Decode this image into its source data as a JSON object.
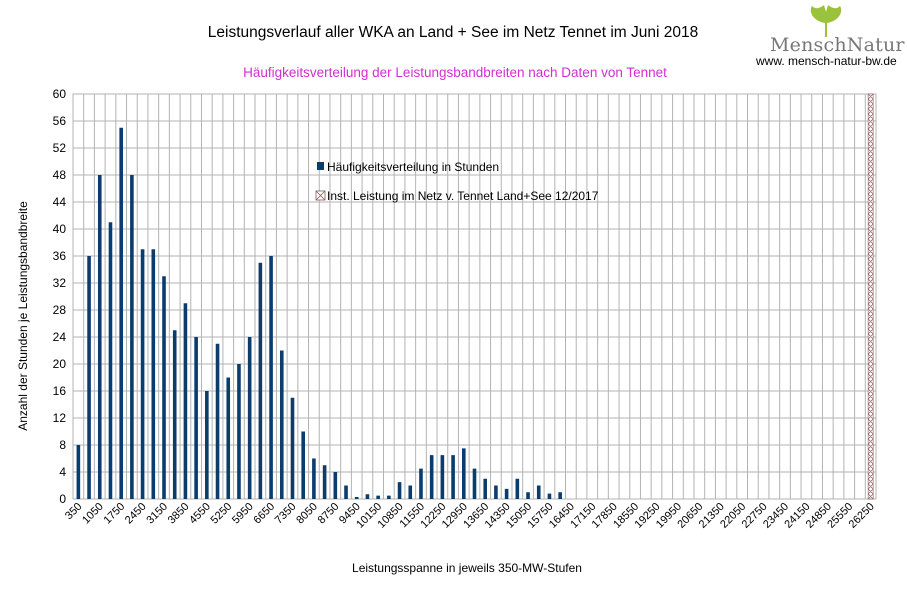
{
  "chart_data": {
    "type": "bar",
    "title": "Leistungsverlauf aller WKA an Land + See im Netz Tennet im Juni 2018",
    "subtitle": "Häufigkeitsverteilung der Leistungsbandbreiten nach Daten von Tennet",
    "xlabel": "Leistungsspanne in jeweils 350-MW-Stufen",
    "ylabel": "Anzahl der Stunden je Leistungsbandbreite",
    "ylim": [
      0,
      60
    ],
    "yticks": [
      0,
      4,
      8,
      12,
      16,
      20,
      24,
      28,
      32,
      36,
      40,
      44,
      48,
      52,
      56,
      60
    ],
    "x_start": 350,
    "x_step": 350,
    "x_count": 75,
    "xtick_labels": [
      "350",
      "1050",
      "1750",
      "2450",
      "3150",
      "3850",
      "4550",
      "5250",
      "5950",
      "6650",
      "7350",
      "8050",
      "8750",
      "9450",
      "10150",
      "10850",
      "11550",
      "12250",
      "12950",
      "13650",
      "14350",
      "15050",
      "15750",
      "16450",
      "17150",
      "17850",
      "18550",
      "19250",
      "19950",
      "20650",
      "21350",
      "22050",
      "22750",
      "23450",
      "24150",
      "24850",
      "25550",
      "26250"
    ],
    "grid": true,
    "legend_position": "inside-top-center",
    "series": [
      {
        "name": "Häufigkeitsverteilung in Stunden",
        "color": "#0b3c6e",
        "values": [
          8,
          36,
          48,
          41,
          55,
          48,
          37,
          37,
          33,
          25,
          29,
          24,
          16,
          23,
          18,
          20,
          24,
          35,
          36,
          22,
          15,
          10,
          6,
          5,
          4,
          2,
          0.3,
          0.7,
          0.5,
          0.5,
          2.5,
          2,
          4.5,
          6.5,
          6.5,
          6.5,
          7.5,
          4.5,
          3,
          2,
          1.5,
          3,
          1,
          2,
          0.8,
          1
        ]
      },
      {
        "name": "Inst. Leistung im Netz v. Tennet  Land+See 12/2017",
        "marker": "hatched-bar",
        "x": 26250,
        "value": 60
      }
    ]
  },
  "logo": {
    "wordmark": "MenschNatur",
    "url": "www. mensch-natur-bw.de",
    "leaf_color": "#9bc23c"
  }
}
